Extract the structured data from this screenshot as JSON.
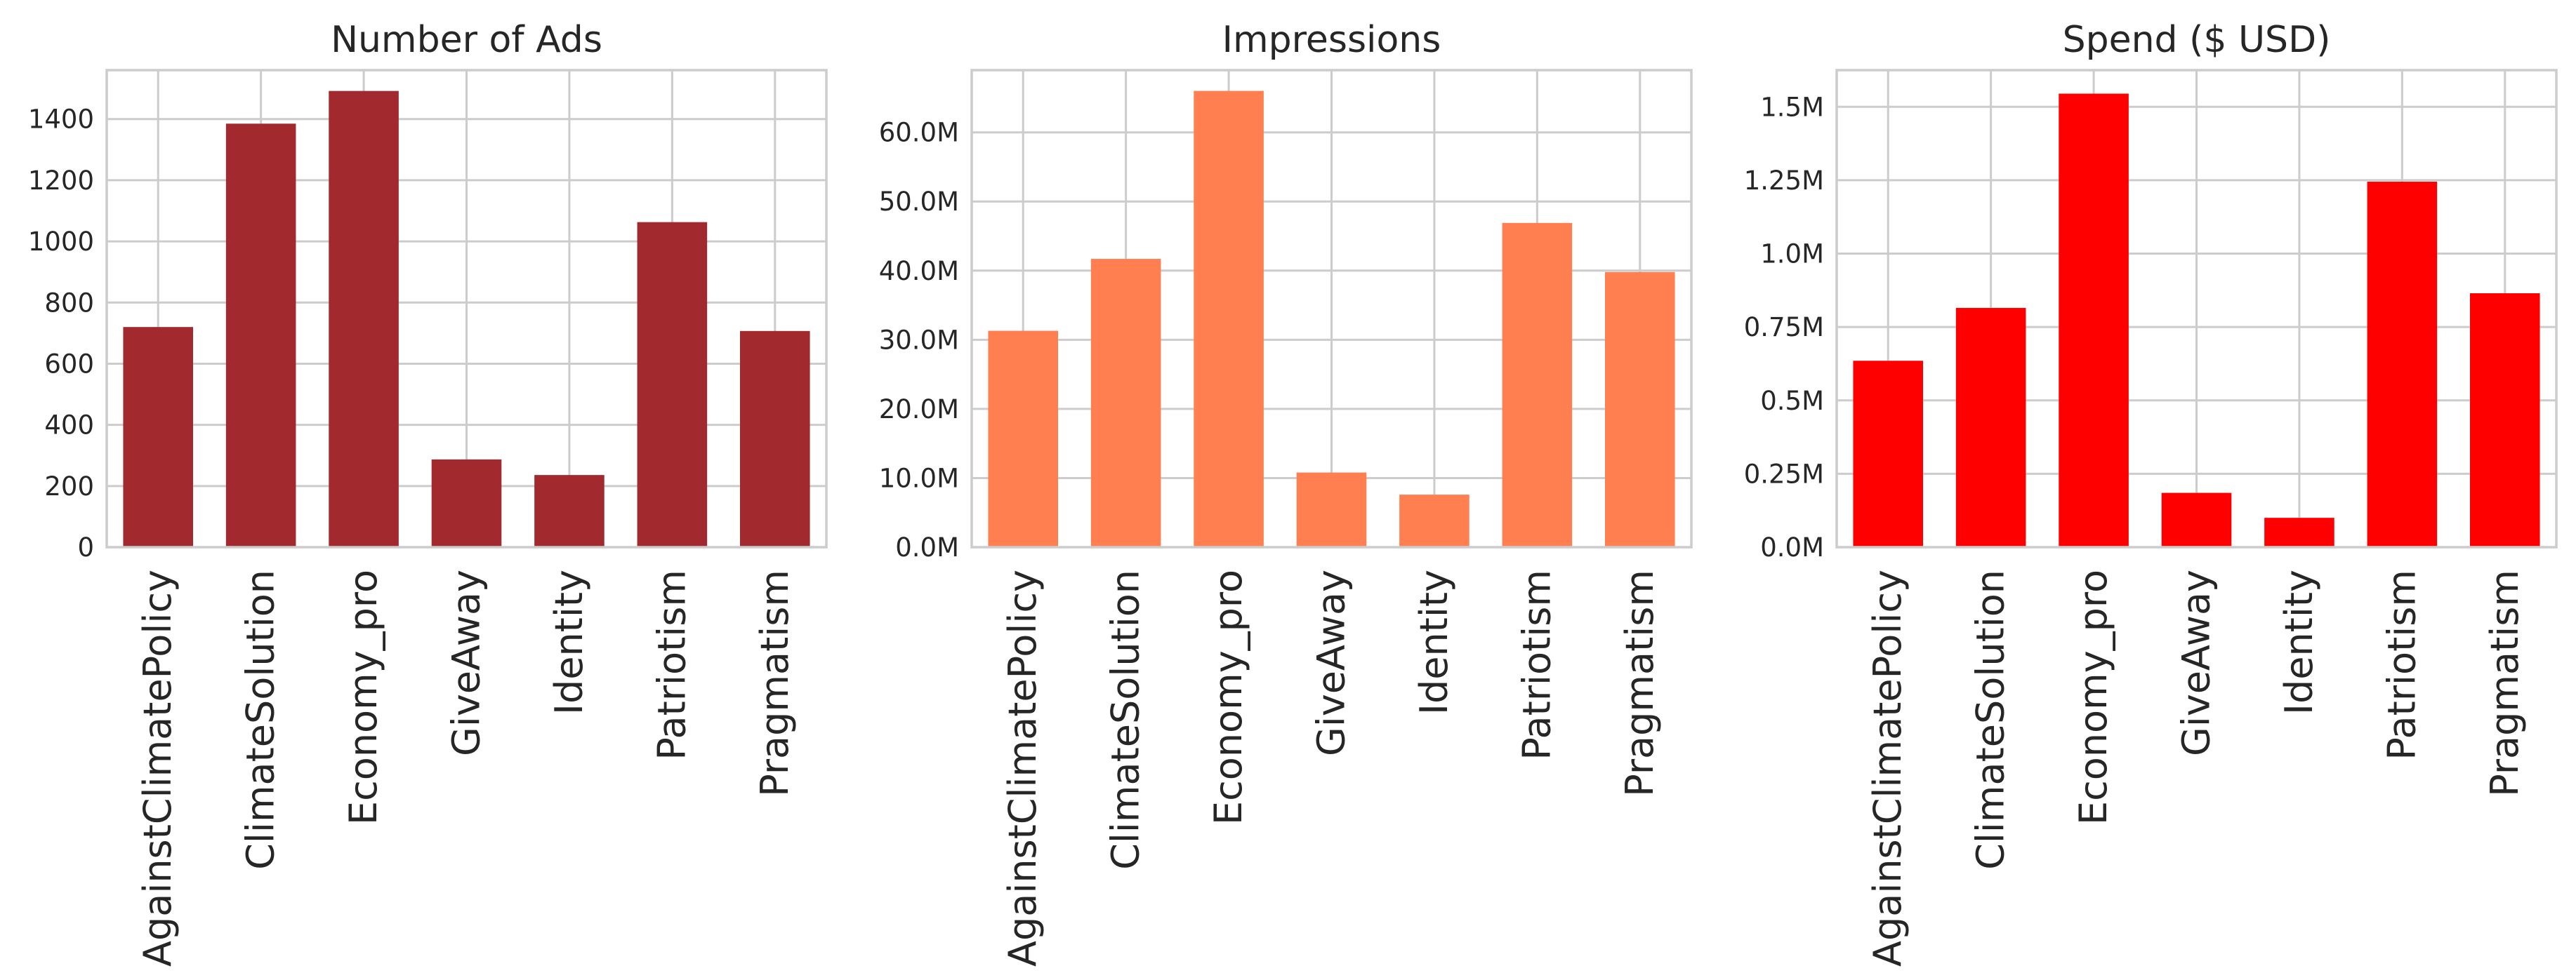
{
  "chart_data": [
    {
      "type": "bar",
      "title": "Number of Ads",
      "categories": [
        "AgainstClimatePolicy",
        "ClimateSolution",
        "Economy_pro",
        "GiveAway",
        "Identity",
        "Patriotism",
        "Pragmatism"
      ],
      "values": [
        720,
        1385,
        1492,
        287,
        236,
        1063,
        707
      ],
      "ylim": [
        0,
        1560
      ],
      "yticks": [
        0,
        200,
        400,
        600,
        800,
        1000,
        1200,
        1400
      ],
      "ytick_labels": [
        "0",
        "200",
        "400",
        "600",
        "800",
        "1000",
        "1200",
        "1400"
      ],
      "color": "#a2292e",
      "grid": true
    },
    {
      "type": "bar",
      "title": "Impressions",
      "categories": [
        "AgainstClimatePolicy",
        "ClimateSolution",
        "Economy_pro",
        "GiveAway",
        "Identity",
        "Patriotism",
        "Pragmatism"
      ],
      "values": [
        31300000,
        41700000,
        66000000,
        10800000,
        7600000,
        46900000,
        39800000
      ],
      "ylim": [
        0,
        69000000
      ],
      "yticks": [
        0,
        10000000,
        20000000,
        30000000,
        40000000,
        50000000,
        60000000
      ],
      "ytick_labels": [
        "0.0M",
        "10.0M",
        "20.0M",
        "30.0M",
        "40.0M",
        "50.0M",
        "60.0M"
      ],
      "color": "#ff7f50",
      "grid": true
    },
    {
      "type": "bar",
      "title": "Spend ($ USD)",
      "categories": [
        "AgainstClimatePolicy",
        "ClimateSolution",
        "Economy_pro",
        "GiveAway",
        "Identity",
        "Patriotism",
        "Pragmatism"
      ],
      "values": [
        635000,
        815000,
        1545000,
        185000,
        100000,
        1245000,
        865000
      ],
      "ylim": [
        0,
        1625000
      ],
      "yticks": [
        0,
        250000,
        500000,
        750000,
        1000000,
        1250000,
        1500000
      ],
      "ytick_labels": [
        "0.0M",
        "0.25M",
        "0.5M",
        "0.75M",
        "1.0M",
        "1.25M",
        "1.5M"
      ],
      "color": "#ff0000",
      "grid": true
    }
  ]
}
